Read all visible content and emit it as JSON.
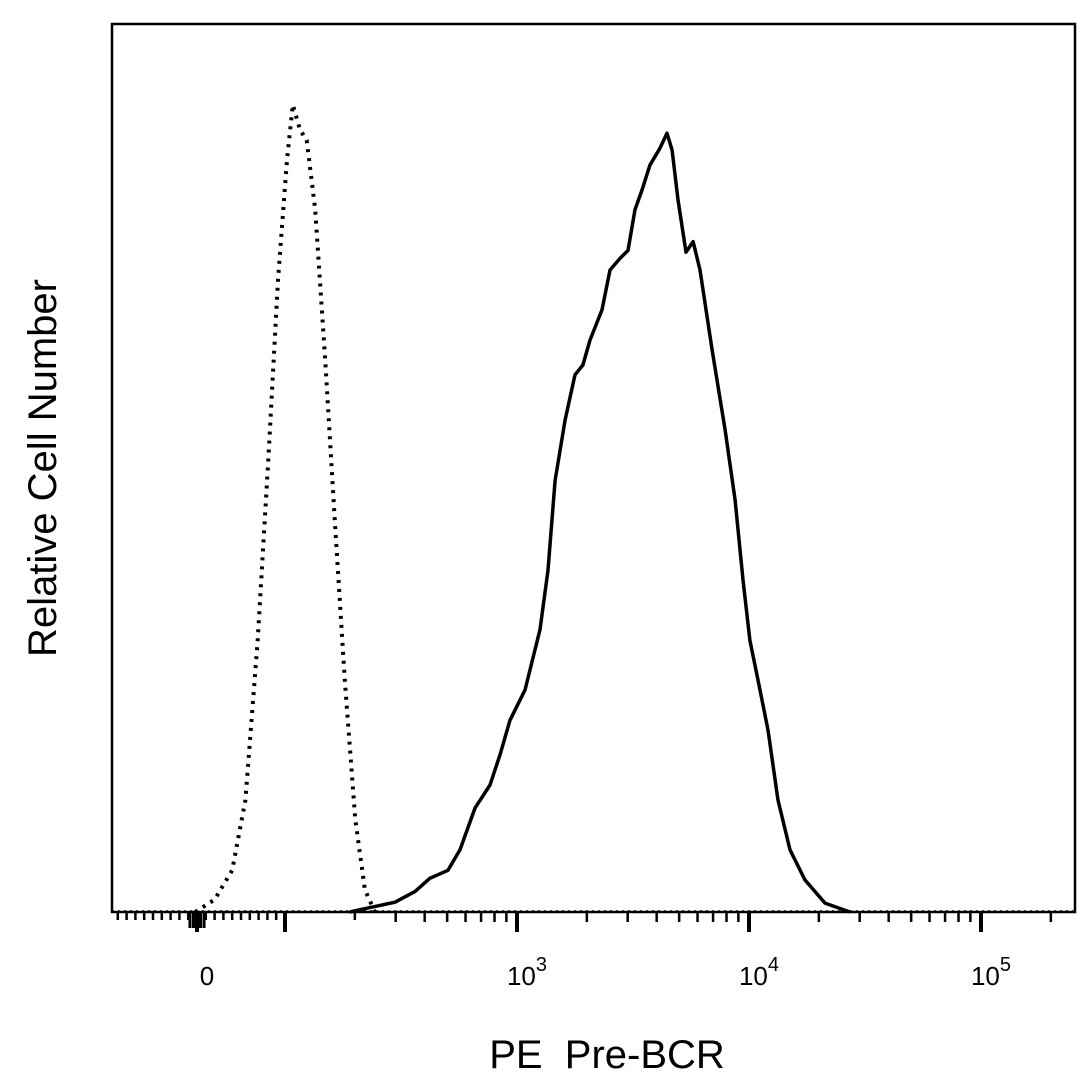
{
  "chart_data": {
    "type": "line",
    "title": "",
    "xlabel": "PE  Pre-BCR",
    "ylabel": "Relative Cell Number",
    "x_scale": "biexponential (logicle)",
    "xlim": [
      -97,
      254000
    ],
    "ylim": [
      0,
      100
    ],
    "grid": false,
    "legend": "none",
    "x_ticks": [
      {
        "value": 0,
        "base": "0",
        "exp": ""
      },
      {
        "value": 1000,
        "base": "10",
        "exp": "3"
      },
      {
        "value": 10000,
        "base": "10",
        "exp": "4"
      },
      {
        "value": 100000,
        "base": "10",
        "exp": "5"
      }
    ],
    "series": [
      {
        "style": "dotted",
        "color": "#000000",
        "x": [
          -2,
          20,
          40,
          55,
          69,
          81,
          92,
          102,
          108,
          116,
          124,
          135,
          149,
          164,
          181,
          201,
          221,
          244
        ],
        "y": [
          0,
          1.4,
          4.7,
          12.6,
          30.6,
          50.9,
          71.2,
          84.7,
          90.9,
          88.1,
          86.9,
          79.1,
          62.2,
          44.1,
          26.1,
          10.4,
          2.5,
          0
        ]
      },
      {
        "style": "solid",
        "color": "#000000",
        "x": [
          190,
          232,
          298,
          363,
          421,
          504,
          568,
          659,
          765,
          845,
          933,
          1083,
          1256,
          1360,
          1459,
          1612,
          1779,
          1924,
          2063,
          2324,
          2517,
          2779,
          3008,
          3226,
          3459,
          3741,
          4132,
          4433,
          4660,
          4943,
          5350,
          5739,
          6150,
          6933,
          7888,
          8710,
          9424,
          10090,
          11150,
          12070,
          13330,
          15020,
          17430,
          21270,
          27230
        ],
        "y": [
          0,
          0.5,
          1.1,
          2.3,
          3.8,
          4.7,
          7.0,
          11.7,
          14.3,
          17.7,
          21.6,
          25.0,
          31.8,
          38.5,
          48.6,
          55.4,
          60.5,
          61.6,
          64.4,
          67.8,
          72.3,
          73.6,
          74.5,
          79.1,
          81.3,
          84.1,
          86.0,
          87.7,
          85.8,
          80.2,
          74.3,
          75.5,
          72.3,
          63.3,
          54.3,
          46.4,
          37.4,
          30.6,
          25.0,
          20.5,
          12.6,
          7.0,
          3.6,
          1.0,
          0
        ]
      }
    ]
  }
}
